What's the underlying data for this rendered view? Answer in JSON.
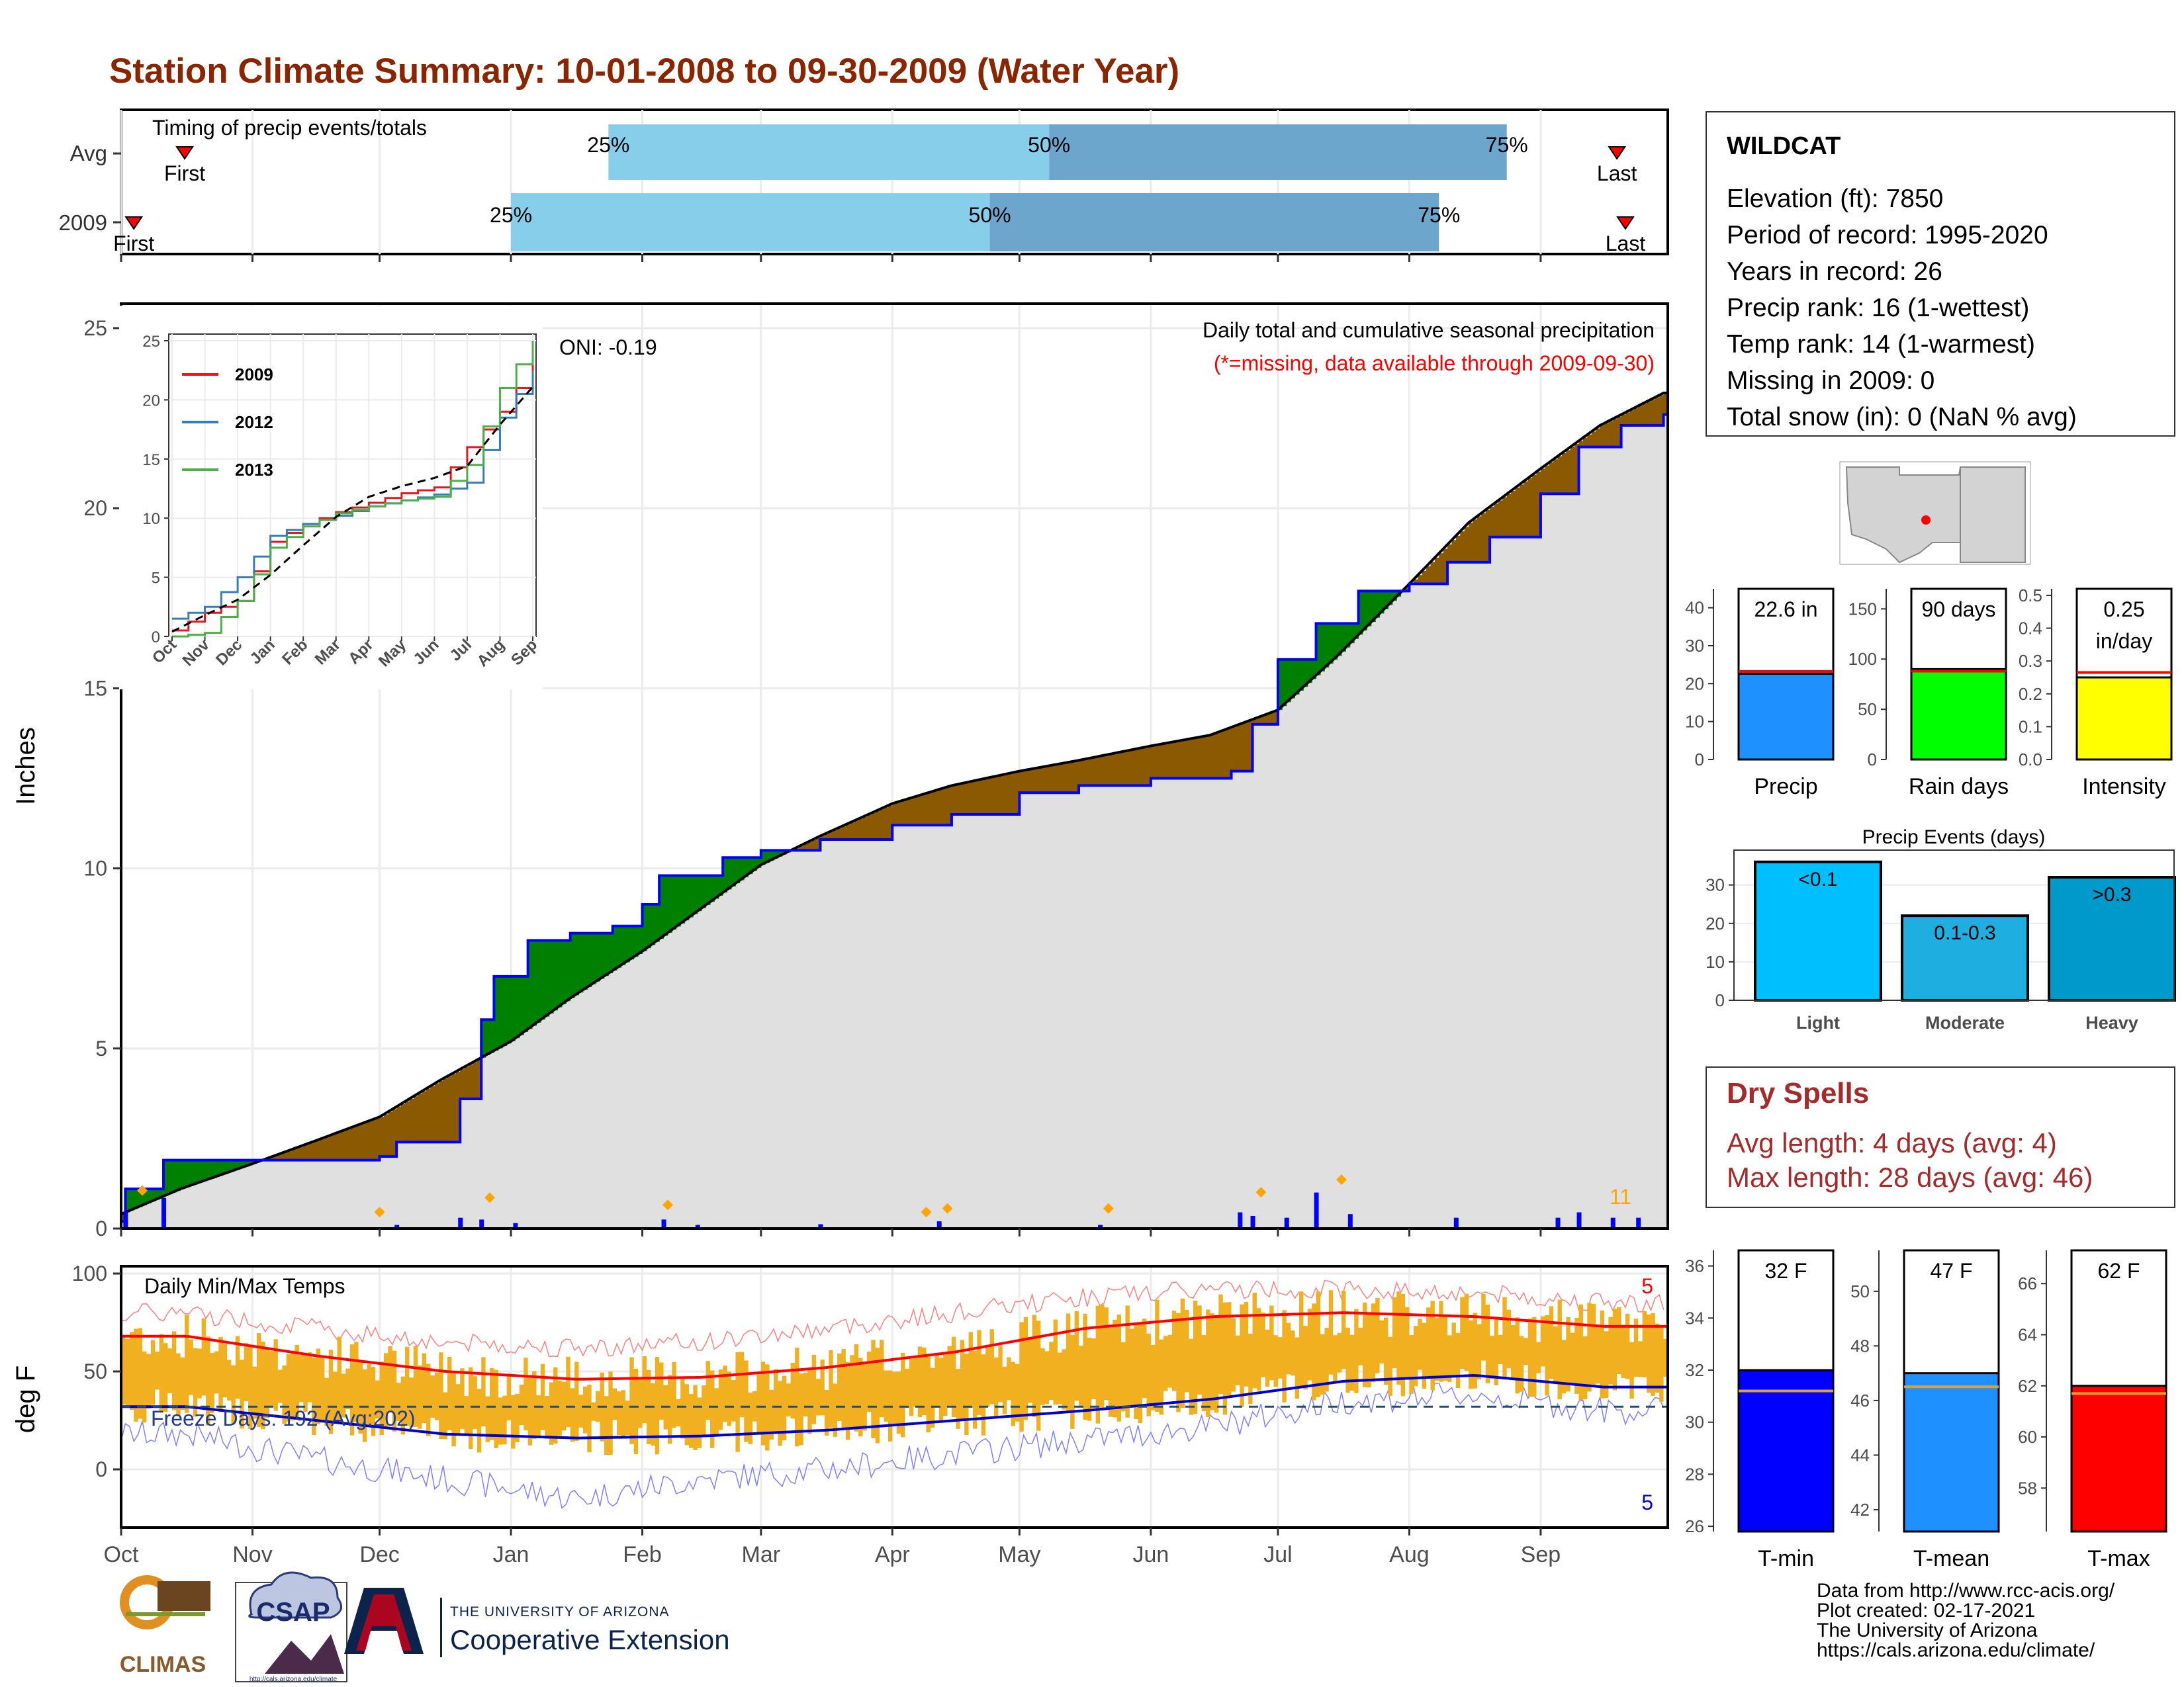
{
  "title": "Station Climate Summary: 10-01-2008 to 09-30-2009 (Water Year)",
  "months": [
    "Oct",
    "Nov",
    "Dec",
    "Jan",
    "Feb",
    "Mar",
    "Apr",
    "May",
    "Jun",
    "Jul",
    "Aug",
    "Sep"
  ],
  "timing": {
    "label": "Timing of precip events/totals",
    "rows": [
      {
        "name": "Avg",
        "first_label": "First",
        "last_label": "Last",
        "p25": "25%",
        "p50": "50%",
        "p75": "75%"
      },
      {
        "name": "2009",
        "first_label": "First",
        "last_label": "Last",
        "p25": "25%",
        "p50": "50%",
        "p75": "75%"
      }
    ],
    "chart_data": {
      "type": "bar",
      "unit": "day of water year",
      "series": [
        {
          "name": "Avg",
          "first": 15,
          "p25": 115,
          "p50": 219,
          "p75": 327,
          "last": 353
        },
        {
          "name": "2009",
          "first": 3,
          "p25": 92,
          "p50": 205,
          "p75": 311,
          "last": 355
        }
      ]
    }
  },
  "precip": {
    "ylabel": "Inches",
    "yticks": [
      "0",
      "5",
      "10",
      "15",
      "20",
      "25"
    ],
    "oni": "ONI: -0.19",
    "desc": "Daily total and cumulative seasonal precipitation",
    "missing_note": "(*=missing, data available through 2009-09-30)",
    "extreme_count": "11",
    "colors": {
      "above": "#008000",
      "below": "#8b5a00",
      "area": "#e0e0e0",
      "line_2009": "#0000ff",
      "daily": "#0000ff",
      "extreme": "#ffa500"
    },
    "chart_data": {
      "type": "area",
      "x_unit": "date",
      "ylim": [
        0,
        25
      ],
      "avg_cumulative_x": [
        "2008-10-01",
        "2008-10-15",
        "2008-11-01",
        "2008-11-15",
        "2008-12-01",
        "2008-12-15",
        "2009-01-01",
        "2009-01-15",
        "2009-02-01",
        "2009-02-15",
        "2009-03-01",
        "2009-03-15",
        "2009-04-01",
        "2009-04-15",
        "2009-05-01",
        "2009-05-15",
        "2009-06-01",
        "2009-06-15",
        "2009-07-01",
        "2009-07-15",
        "2009-08-01",
        "2009-08-15",
        "2009-09-01",
        "2009-09-15",
        "2009-09-30"
      ],
      "avg_cumulative_y": [
        0.4,
        1.1,
        1.8,
        2.4,
        3.1,
        4.1,
        5.2,
        6.4,
        7.7,
        8.9,
        10.1,
        10.9,
        11.8,
        12.3,
        12.7,
        13.0,
        13.4,
        13.7,
        14.4,
        15.9,
        17.9,
        19.6,
        21.1,
        22.3,
        23.2
      ],
      "obs_cumulative_x": [
        "2008-10-01",
        "2008-10-02",
        "2008-10-11",
        "2008-11-01",
        "2008-11-15",
        "2008-12-01",
        "2008-12-05",
        "2008-12-20",
        "2008-12-25",
        "2008-12-28",
        "2009-01-05",
        "2009-01-15",
        "2009-01-25",
        "2009-02-01",
        "2009-02-05",
        "2009-02-20",
        "2009-03-01",
        "2009-03-15",
        "2009-04-01",
        "2009-04-15",
        "2009-05-01",
        "2009-05-15",
        "2009-06-01",
        "2009-06-20",
        "2009-06-25",
        "2009-07-01",
        "2009-07-10",
        "2009-07-20",
        "2009-08-01",
        "2009-08-10",
        "2009-08-20",
        "2009-09-01",
        "2009-09-10",
        "2009-09-20",
        "2009-09-30"
      ],
      "obs_cumulative_y": [
        0.2,
        1.1,
        1.9,
        1.9,
        1.9,
        2.0,
        2.4,
        3.6,
        5.8,
        7.0,
        8.0,
        8.2,
        8.4,
        9.0,
        9.8,
        10.3,
        10.5,
        10.8,
        11.2,
        11.5,
        12.1,
        12.3,
        12.5,
        12.7,
        14.0,
        15.8,
        16.8,
        17.7,
        17.9,
        18.5,
        19.2,
        20.4,
        21.7,
        22.3,
        22.6
      ],
      "daily_x": [
        "2008-10-02",
        "2008-10-11",
        "2008-12-05",
        "2008-12-20",
        "2008-12-25",
        "2009-01-02",
        "2009-02-06",
        "2009-02-14",
        "2009-03-15",
        "2009-04-12",
        "2009-05-20",
        "2009-06-22",
        "2009-06-25",
        "2009-07-03",
        "2009-07-10",
        "2009-07-18",
        "2009-08-12",
        "2009-09-05",
        "2009-09-10",
        "2009-09-18",
        "2009-09-24"
      ],
      "daily_y": [
        0.45,
        0.85,
        0.1,
        0.3,
        0.25,
        0.15,
        0.25,
        0.1,
        0.12,
        0.2,
        0.1,
        0.45,
        0.35,
        0.3,
        1.0,
        0.4,
        0.3,
        0.3,
        0.45,
        0.3,
        0.3
      ],
      "extreme_x": [
        "2008-10-06",
        "2008-12-01",
        "2008-12-27",
        "2009-02-07",
        "2009-04-09",
        "2009-04-14",
        "2009-05-22",
        "2009-06-27",
        "2009-07-16"
      ],
      "extreme_y": [
        0.8,
        0.2,
        0.6,
        0.4,
        0.2,
        0.3,
        0.3,
        0.75,
        1.1
      ]
    }
  },
  "inset": {
    "legend": [
      "2009",
      "2012",
      "2013"
    ],
    "colors": [
      "#e41a1c",
      "#377eb8",
      "#4daf4a"
    ],
    "yticks": [
      "0",
      "5",
      "10",
      "15",
      "20",
      "25"
    ],
    "chart_data": {
      "type": "line",
      "x": [
        "Oct",
        "Nov",
        "Dec",
        "Jan",
        "Feb",
        "Mar",
        "Apr",
        "May",
        "Jun",
        "Jul",
        "Aug",
        "Sep"
      ],
      "ylim": [
        0,
        25
      ],
      "series": [
        {
          "name": "2009",
          "values": [
            0.5,
            2.0,
            3.0,
            8.0,
            9.5,
            10.5,
            11.3,
            12.1,
            12.6,
            16.0,
            19.0,
            23.0
          ]
        },
        {
          "name": "2012",
          "values": [
            1.5,
            2.5,
            5.0,
            8.5,
            9.5,
            10.2,
            11.0,
            11.5,
            12.0,
            13.0,
            18.5,
            22.5
          ]
        },
        {
          "name": "2013",
          "values": [
            0.0,
            0.3,
            3.0,
            7.5,
            9.3,
            10.4,
            11.0,
            11.5,
            11.8,
            14.5,
            21.0,
            25.0
          ]
        },
        {
          "name": "Avg",
          "values": [
            0.4,
            1.8,
            3.1,
            5.2,
            7.7,
            10.1,
            11.8,
            12.7,
            13.4,
            14.4,
            17.9,
            21.1
          ]
        }
      ]
    }
  },
  "temps": {
    "ylabel": "deg F",
    "yticks": [
      "0",
      "50",
      "100"
    ],
    "label": "Daily Min/Max Temps",
    "freeze": "Freeze Days: 192 (Avg:202)",
    "count_hi": "5",
    "count_lo": "5",
    "chart_data": {
      "type": "line",
      "ylim": [
        -30,
        100
      ],
      "x": [
        "Oct",
        "Nov",
        "Dec",
        "Jan",
        "Feb",
        "Mar",
        "Apr",
        "May",
        "Jun",
        "Jul",
        "Aug",
        "Sep"
      ],
      "series": [
        {
          "name": "avg_max",
          "values": [
            68,
            58,
            50,
            46,
            47,
            52,
            60,
            72,
            78,
            80,
            78,
            73
          ]
        },
        {
          "name": "avg_min",
          "values": [
            32,
            25,
            18,
            16,
            17,
            20,
            25,
            30,
            36,
            45,
            48,
            42
          ]
        },
        {
          "name": "record_max",
          "values": [
            80,
            72,
            65,
            62,
            65,
            72,
            80,
            88,
            92,
            92,
            90,
            85
          ]
        },
        {
          "name": "record_min",
          "values": [
            18,
            5,
            -5,
            -15,
            -5,
            0,
            8,
            15,
            22,
            35,
            38,
            30
          ]
        }
      ],
      "freeze_line": 32
    }
  },
  "station": {
    "name": "WILDCAT",
    "rows": [
      "Elevation (ft): 7850",
      "Period of record: 1995-2020",
      "Years in record: 26",
      "Precip rank: 16 (1-wettest)",
      "Temp rank: 14 (1-warmest)",
      "Missing in 2009: 0",
      "Total snow (in): 0 (NaN % avg)"
    ]
  },
  "bars": {
    "precip": {
      "label": "Precip",
      "value_label": "22.6 in",
      "value": 22.6,
      "avg": 23.2,
      "yticks": [
        "0",
        "10",
        "20",
        "30",
        "40"
      ],
      "max": 45,
      "color": "#1e90ff"
    },
    "rain": {
      "label": "Rain days",
      "value_label": "90 days",
      "value": 90,
      "avg": 88,
      "yticks": [
        "0",
        "50",
        "100",
        "150"
      ],
      "max": 170,
      "color": "#00ff00"
    },
    "intensity": {
      "label": "Intensity",
      "value_label1": "0.25",
      "value_label2": "in/day",
      "value": 0.25,
      "avg": 0.265,
      "yticks": [
        "0.0",
        "0.1",
        "0.2",
        "0.3",
        "0.4",
        "0.5"
      ],
      "max": 0.52,
      "color": "#ffff00"
    }
  },
  "events": {
    "title": "Precip Events (days)",
    "yticks": [
      "0",
      "10",
      "20",
      "30"
    ],
    "chart_data": {
      "type": "bar",
      "categories": [
        "Light",
        "Moderate",
        "Heavy"
      ],
      "values": [
        36,
        22,
        32
      ],
      "labels": [
        "<0.1",
        "0.1-0.3",
        ">0.3"
      ],
      "colors": [
        "#00bfff",
        "#1eaee0",
        "#0099cc"
      ],
      "ylim": [
        0,
        37
      ]
    }
  },
  "dry": {
    "title": "Dry Spells",
    "avg": "Avg length: 4 days (avg: 4)",
    "max": "Max length: 28 days (avg: 46)"
  },
  "tbars": {
    "tmin": {
      "label": "T-min",
      "value_label": "32 F",
      "value": 32,
      "avg": 31.2,
      "yticks": [
        "26",
        "28",
        "30",
        "32",
        "34",
        "36"
      ],
      "min": 25.8,
      "max": 36.6,
      "color": "#0000ff"
    },
    "tmean": {
      "label": "T-mean",
      "value_label": "47 F",
      "value": 47,
      "avg": 46.5,
      "yticks": [
        "42",
        "44",
        "46",
        "48",
        "50"
      ],
      "min": 41.2,
      "max": 51.5,
      "color": "#1e90ff"
    },
    "tmax": {
      "label": "T-max",
      "value_label": "62 F",
      "value": 62,
      "avg": 61.7,
      "yticks": [
        "58",
        "60",
        "62",
        "64",
        "66"
      ],
      "min": 56.3,
      "max": 67.3,
      "color": "#ff0000"
    }
  },
  "credits": [
    "Data from http://www.rcc-acis.org/",
    "Plot created: 02-17-2021",
    "The University of Arizona",
    "https://cals.arizona.edu/climate/"
  ],
  "logos": {
    "climas": "CLIMAS",
    "csap": "CSAP",
    "csap_url": "http://cals.arizona.edu/climate",
    "ua_small": "THE UNIVERSITY OF ARIZONA",
    "ua_big": "Cooperative Extension"
  }
}
